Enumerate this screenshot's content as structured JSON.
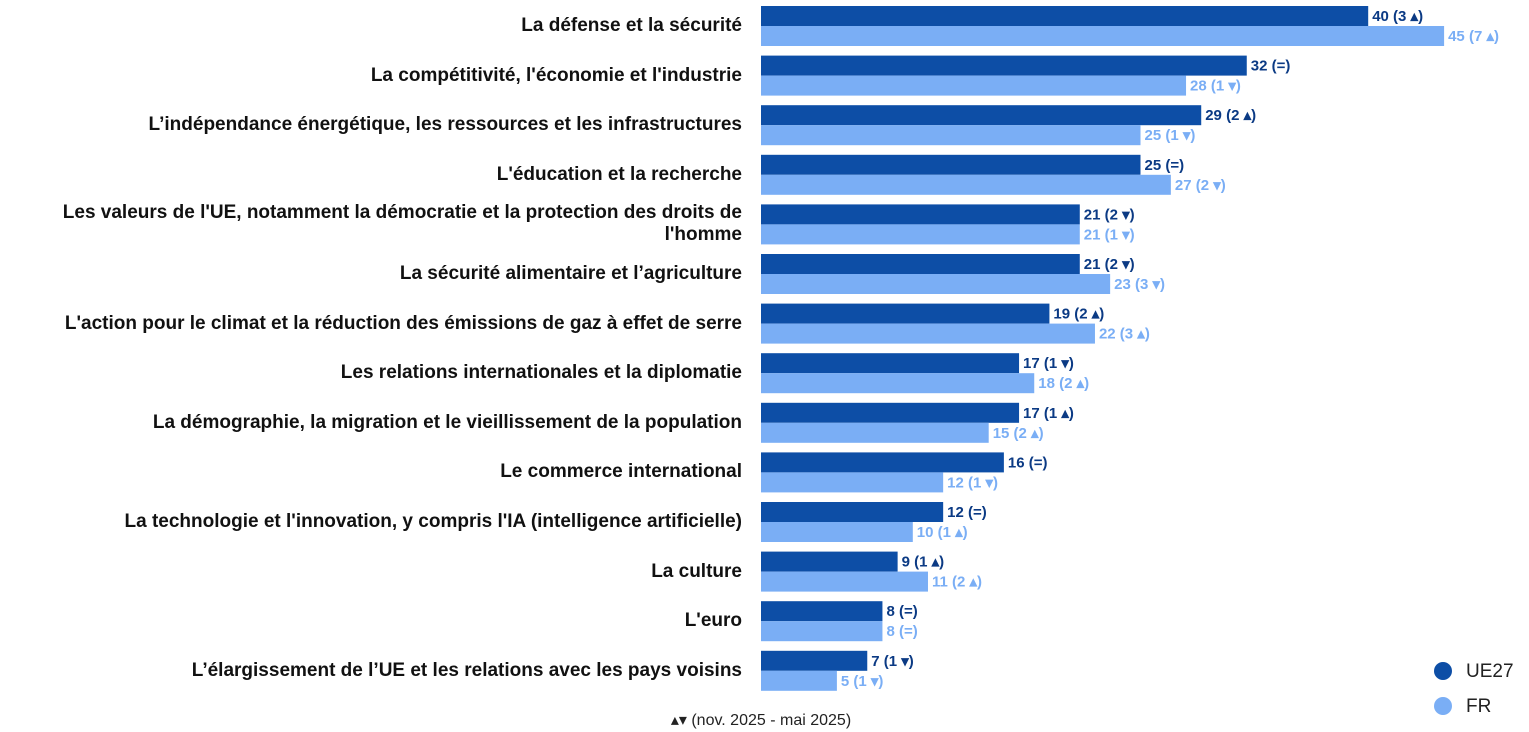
{
  "chart_data": {
    "type": "bar",
    "categories": [
      "La défense et la sécurité",
      "La compétitivité, l'économie et l'industrie",
      "L’indépendance énergétique, les ressources et les infrastructures",
      "L'éducation et la recherche",
      "Les valeurs de l'UE, notamment la démocratie et la protection des droits de l'homme",
      "La sécurité alimentaire et l’agriculture",
      "L'action pour le climat et la réduction des émissions de gaz à effet de serre",
      "Les relations internationales et la diplomatie",
      "La démographie, la migration et le vieillissement de la population",
      "Le commerce international",
      "La technologie et l'innovation, y compris l'IA (intelligence artificielle)",
      "La culture",
      "L'euro",
      "L’élargissement de l’UE et les relations avec les pays voisins"
    ],
    "series": [
      {
        "name": "UE27",
        "color": "#0d4ea6",
        "label_color": "#0b3a84",
        "values": [
          40,
          32,
          29,
          25,
          21,
          21,
          19,
          17,
          17,
          16,
          12,
          9,
          8,
          7
        ],
        "value_labels": [
          "40 (3 ▴)",
          "32 (=)",
          "29 (2 ▴)",
          "25 (=)",
          "21 (2 ▾)",
          "21 (2 ▾)",
          "19 (2 ▴)",
          "17 (1 ▾)",
          "17 (1 ▴)",
          "16 (=)",
          "12 (=)",
          "9 (1 ▴)",
          "8 (=)",
          "7 (1 ▾)"
        ]
      },
      {
        "name": "FR",
        "color": "#7aaef5",
        "label_color": "#7aaef5",
        "values": [
          45,
          28,
          25,
          27,
          21,
          23,
          22,
          18,
          15,
          12,
          10,
          11,
          8,
          5
        ],
        "value_labels": [
          "45 (7 ▴)",
          "28 (1 ▾)",
          "25 (1 ▾)",
          "27 (2 ▾)",
          "21 (1 ▾)",
          "23 (3 ▾)",
          "22 (3 ▴)",
          "18 (2 ▴)",
          "15 (2 ▴)",
          "12 (1 ▾)",
          "10 (1 ▴)",
          "11 (2 ▴)",
          "8 (=)",
          "5 (1 ▾)"
        ]
      }
    ],
    "note": "▴▾ (nov. 2025 - mai 2025)",
    "legend": "bottom-right"
  }
}
